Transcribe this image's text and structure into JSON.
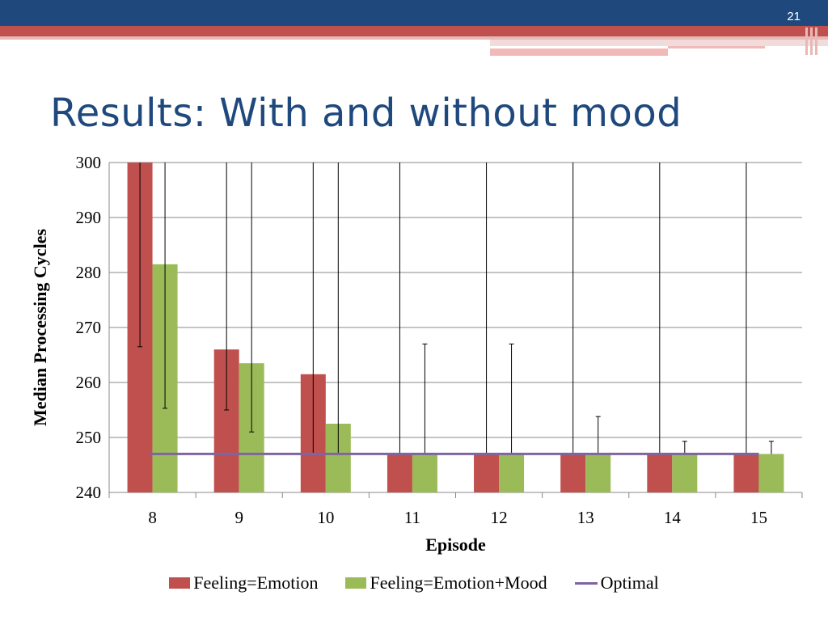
{
  "slide": {
    "number": "21",
    "title": "Results: With and without mood"
  },
  "colors": {
    "header_blue": "#1f497d",
    "header_red": "#c0504d",
    "series_emotion": "#c0504d",
    "series_mood": "#9bbb59",
    "optimal_line": "#8064a2"
  },
  "chart_data": {
    "type": "bar",
    "xlabel": "Episode",
    "ylabel": "Median Processing Cycles",
    "categories": [
      "8",
      "9",
      "10",
      "11",
      "12",
      "13",
      "14",
      "15"
    ],
    "ylim": [
      240,
      300
    ],
    "yticks": [
      "240",
      "250",
      "260",
      "270",
      "280",
      "290",
      "300"
    ],
    "grid": true,
    "legend_position": "bottom",
    "series": [
      {
        "name": "Feeling=Emotion",
        "values": [
          300,
          266,
          261.5,
          247,
          247,
          247,
          247,
          247
        ],
        "err_low": [
          266.5,
          255,
          247,
          247,
          247,
          247,
          247,
          247
        ],
        "err_high": [
          300,
          300,
          300,
          300,
          300,
          300,
          300,
          300
        ]
      },
      {
        "name": "Feeling=Emotion+Mood",
        "values": [
          281.5,
          263.5,
          252.5,
          247,
          247,
          247,
          247,
          247
        ],
        "err_low": [
          255.3,
          251,
          247,
          247,
          247,
          247,
          247,
          247
        ],
        "err_high": [
          300,
          300,
          300,
          267,
          267,
          253.8,
          249.3,
          249.3
        ]
      }
    ],
    "reference_line": {
      "name": "Optimal",
      "value": 247
    }
  }
}
